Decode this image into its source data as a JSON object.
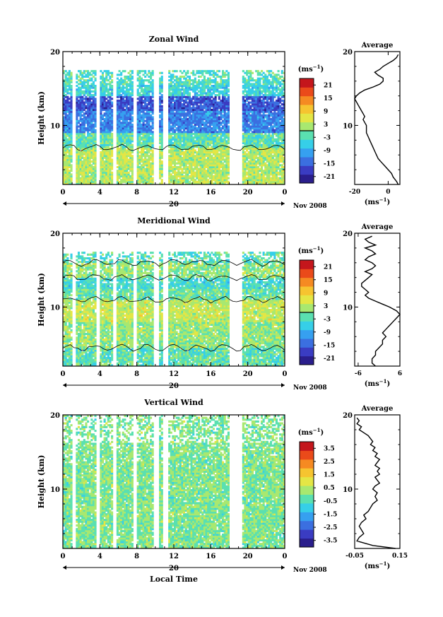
{
  "chart_data": [
    {
      "type": "heatmap",
      "title": "Zonal Wind",
      "ylabel": "Height (km)",
      "ylim": [
        2,
        20
      ],
      "yticks": [
        "20",
        "10"
      ],
      "ytick_values": [
        20,
        10
      ],
      "xlim": [
        0,
        24
      ],
      "xticks": [
        "0",
        "4",
        "8",
        "12",
        "16",
        "20",
        "0"
      ],
      "xtick_values": [
        0,
        4,
        8,
        12,
        16,
        20,
        24
      ],
      "date_tick": "20",
      "date_label": "Nov 2008",
      "colorbar": {
        "unit_base": "(ms",
        "unit_sup": "−1",
        "unit_end": ")",
        "ticks": [
          "21",
          "15",
          "9",
          "3",
          "-3",
          "-9",
          "-15",
          "-21"
        ],
        "range": [
          -24,
          24
        ],
        "colors": [
          "#2a1e8c",
          "#3a3cc2",
          "#3b6fe0",
          "#36a0f0",
          "#36cfe8",
          "#5ae0b0",
          "#a8e870",
          "#e4e645",
          "#f6c430",
          "#f58a22",
          "#ea4a1a",
          "#c4161c"
        ]
      },
      "contour_levels": [
        0
      ],
      "gaps": [
        [
          1.1,
          1.5
        ],
        [
          3.6,
          4.0
        ],
        [
          5.4,
          5.9
        ],
        [
          7.6,
          8.1
        ],
        [
          9.9,
          10.4
        ],
        [
          10.9,
          11.4
        ],
        [
          18.0,
          19.4
        ]
      ],
      "field": [
        {
          "z": [
            2,
            7
          ],
          "v": 3,
          "note_colors": "low levels yellow-green"
        },
        {
          "z": [
            7,
            9
          ],
          "v": -2
        },
        {
          "z": [
            9,
            12
          ],
          "v": -12
        },
        {
          "z": [
            12,
            14
          ],
          "v": -16
        },
        {
          "z": [
            14,
            15.5
          ],
          "v": -5
        },
        {
          "z": [
            15.5,
            17.5
          ],
          "v": -3
        }
      ],
      "average": {
        "title": "Average",
        "xlabel_base": "(ms",
        "xlabel_sup": "−1",
        "xlabel_end": ")",
        "xlim": [
          -20,
          7
        ],
        "xticks": [
          "-20",
          "0"
        ],
        "xtick_values": [
          -20,
          0
        ],
        "ylim": [
          2,
          20
        ],
        "yticks": [
          "20",
          "10"
        ],
        "ytick_values": [
          20,
          10
        ],
        "x": [
          6,
          5,
          3,
          2,
          0,
          -2,
          -4,
          -6,
          -7,
          -8,
          -9,
          -10,
          -11,
          -12,
          -13,
          -13,
          -13,
          -14,
          -15,
          -14,
          -15,
          -16,
          -17,
          -18,
          -19,
          -20,
          -19,
          -17,
          -14,
          -9,
          -5,
          -3,
          -3,
          -6,
          -8,
          -5,
          -3,
          0,
          3,
          5,
          6
        ],
        "y": [
          2.0,
          2.4,
          3.0,
          3.5,
          4.0,
          4.5,
          5.0,
          5.5,
          6.0,
          6.5,
          7.0,
          7.5,
          8.0,
          8.5,
          9.0,
          9.5,
          10.0,
          10.4,
          10.8,
          11.2,
          11.6,
          12.0,
          12.4,
          12.8,
          13.2,
          13.6,
          14.0,
          14.4,
          14.8,
          15.2,
          15.6,
          16.0,
          16.4,
          16.8,
          17.2,
          17.6,
          18.0,
          18.4,
          18.8,
          19.2,
          19.6
        ]
      }
    },
    {
      "type": "heatmap",
      "title": "Meridional Wind",
      "ylabel": "Height (km)",
      "ylim": [
        2,
        20
      ],
      "yticks": [
        "20",
        "10"
      ],
      "ytick_values": [
        20,
        10
      ],
      "xlim": [
        0,
        24
      ],
      "xticks": [
        "0",
        "4",
        "8",
        "12",
        "16",
        "20",
        "0"
      ],
      "xtick_values": [
        0,
        4,
        8,
        12,
        16,
        20,
        24
      ],
      "date_tick": "20",
      "date_label": "Nov 2008",
      "colorbar": {
        "unit_base": "(ms",
        "unit_sup": "−1",
        "unit_end": ")",
        "ticks": [
          "21",
          "15",
          "9",
          "3",
          "-3",
          "-9",
          "-15",
          "-21"
        ],
        "range": [
          -24,
          24
        ],
        "colors": [
          "#2a1e8c",
          "#3a3cc2",
          "#3b6fe0",
          "#36a0f0",
          "#36cfe8",
          "#5ae0b0",
          "#a8e870",
          "#e4e645",
          "#f6c430",
          "#f58a22",
          "#ea4a1a",
          "#c4161c"
        ]
      },
      "contour_levels": [
        0
      ],
      "gaps": [
        [
          1.1,
          1.5
        ],
        [
          3.6,
          4.0
        ],
        [
          5.4,
          5.9
        ],
        [
          7.6,
          8.1
        ],
        [
          9.9,
          10.4
        ],
        [
          10.9,
          11.4
        ],
        [
          18.0,
          19.4
        ]
      ],
      "field": [
        {
          "z": [
            2,
            4.5
          ],
          "v": -2
        },
        {
          "z": [
            4.5,
            8
          ],
          "v": 1
        },
        {
          "z": [
            8,
            11
          ],
          "v": 4
        },
        {
          "z": [
            11,
            12.5
          ],
          "v": -1
        },
        {
          "z": [
            12.5,
            14
          ],
          "v": -4
        },
        {
          "z": [
            14,
            16
          ],
          "v": 1
        },
        {
          "z": [
            16,
            17.5
          ],
          "v": -3
        }
      ],
      "average": {
        "title": "Average",
        "xlabel_base": "(ms",
        "xlabel_sup": "−1",
        "xlabel_end": ")",
        "xlim": [
          -7,
          6
        ],
        "xticks": [
          "-6",
          "6"
        ],
        "xtick_values": [
          -6,
          6
        ],
        "ylim": [
          2,
          20
        ],
        "yticks": [
          "20",
          "10"
        ],
        "ytick_values": [
          20,
          10
        ],
        "x": [
          -1,
          -2,
          -2,
          -1,
          -1,
          0,
          1,
          1,
          2,
          1,
          2,
          3,
          4,
          5,
          6,
          5,
          3,
          1,
          -1,
          -3,
          -4,
          -3,
          -4,
          -5,
          -5,
          -4,
          -3,
          -2,
          -4,
          -2,
          -1,
          -2,
          -4,
          -3,
          -1,
          -2,
          -4,
          -1,
          -3,
          -4,
          -2
        ],
        "y": [
          2.0,
          2.4,
          3.0,
          3.5,
          4.0,
          4.5,
          5.0,
          5.5,
          6.0,
          6.5,
          7.0,
          7.5,
          8.0,
          8.5,
          9.0,
          9.5,
          10.0,
          10.4,
          10.8,
          11.2,
          11.6,
          12.0,
          12.4,
          12.8,
          13.2,
          13.6,
          14.0,
          14.4,
          14.8,
          15.2,
          15.6,
          16.0,
          16.4,
          16.8,
          17.2,
          17.6,
          18.0,
          18.4,
          18.8,
          19.2,
          19.6
        ]
      }
    },
    {
      "type": "heatmap",
      "title": "Vertical Wind",
      "ylabel": "Height (km)",
      "xlabel": "Local Time",
      "ylim": [
        2,
        20
      ],
      "yticks": [
        "20",
        "10"
      ],
      "ytick_values": [
        20,
        10
      ],
      "xlim": [
        0,
        24
      ],
      "xticks": [
        "0",
        "4",
        "8",
        "12",
        "16",
        "20",
        "0"
      ],
      "xtick_values": [
        0,
        4,
        8,
        12,
        16,
        20,
        24
      ],
      "date_tick": "20",
      "date_label": "Nov 2008",
      "colorbar": {
        "unit_base": "(ms",
        "unit_sup": "−1",
        "unit_end": ")",
        "ticks": [
          "3.5",
          "2.5",
          "1.5",
          "0.5",
          "-0.5",
          "-1.5",
          "-2.5",
          "-3.5"
        ],
        "range": [
          -4,
          4
        ],
        "colors": [
          "#2a1e8c",
          "#3a3cc2",
          "#3b6fe0",
          "#36a0f0",
          "#36cfe8",
          "#5ae0b0",
          "#a8e870",
          "#e4e645",
          "#f6c430",
          "#f58a22",
          "#ea4a1a",
          "#c4161c"
        ]
      },
      "contour_levels": [],
      "gaps": [
        [
          1.1,
          1.5
        ],
        [
          3.6,
          4.0
        ],
        [
          5.4,
          5.9
        ],
        [
          7.6,
          8.1
        ],
        [
          9.9,
          10.4
        ],
        [
          10.9,
          11.4
        ],
        [
          18.0,
          19.4
        ]
      ],
      "field": [
        {
          "z": [
            2,
            20
          ],
          "v": 0
        }
      ],
      "average": {
        "title": "Average",
        "xlabel_base": "(ms",
        "xlabel_sup": "−1",
        "xlabel_end": ")",
        "xlim": [
          -0.05,
          0.15
        ],
        "xticks": [
          "-0.05",
          "0.15"
        ],
        "xtick_values": [
          -0.05,
          0.15
        ],
        "ylim": [
          2,
          20
        ],
        "yticks": [
          "20",
          "10"
        ],
        "ytick_values": [
          20,
          10
        ],
        "x": [
          0.13,
          0.03,
          -0.04,
          -0.03,
          -0.01,
          -0.02,
          -0.03,
          -0.02,
          0.0,
          -0.01,
          0.01,
          0.02,
          0.03,
          0.05,
          0.04,
          0.05,
          0.03,
          0.04,
          0.06,
          0.05,
          0.04,
          0.06,
          0.05,
          0.06,
          0.04,
          0.05,
          0.06,
          0.04,
          0.05,
          0.03,
          0.04,
          0.02,
          0.03,
          0.02,
          0.01,
          -0.01,
          -0.03,
          -0.02,
          -0.04,
          -0.03,
          -0.04
        ],
        "y": [
          2.0,
          2.4,
          3.0,
          3.5,
          4.0,
          4.5,
          5.0,
          5.5,
          6.0,
          6.5,
          7.0,
          7.5,
          8.0,
          8.5,
          9.0,
          9.5,
          10.0,
          10.4,
          10.8,
          11.2,
          11.6,
          12.0,
          12.4,
          12.8,
          13.2,
          13.6,
          14.0,
          14.4,
          14.8,
          15.2,
          15.6,
          16.0,
          16.4,
          16.8,
          17.2,
          17.6,
          18.0,
          18.4,
          18.8,
          19.2,
          19.6
        ]
      }
    }
  ]
}
